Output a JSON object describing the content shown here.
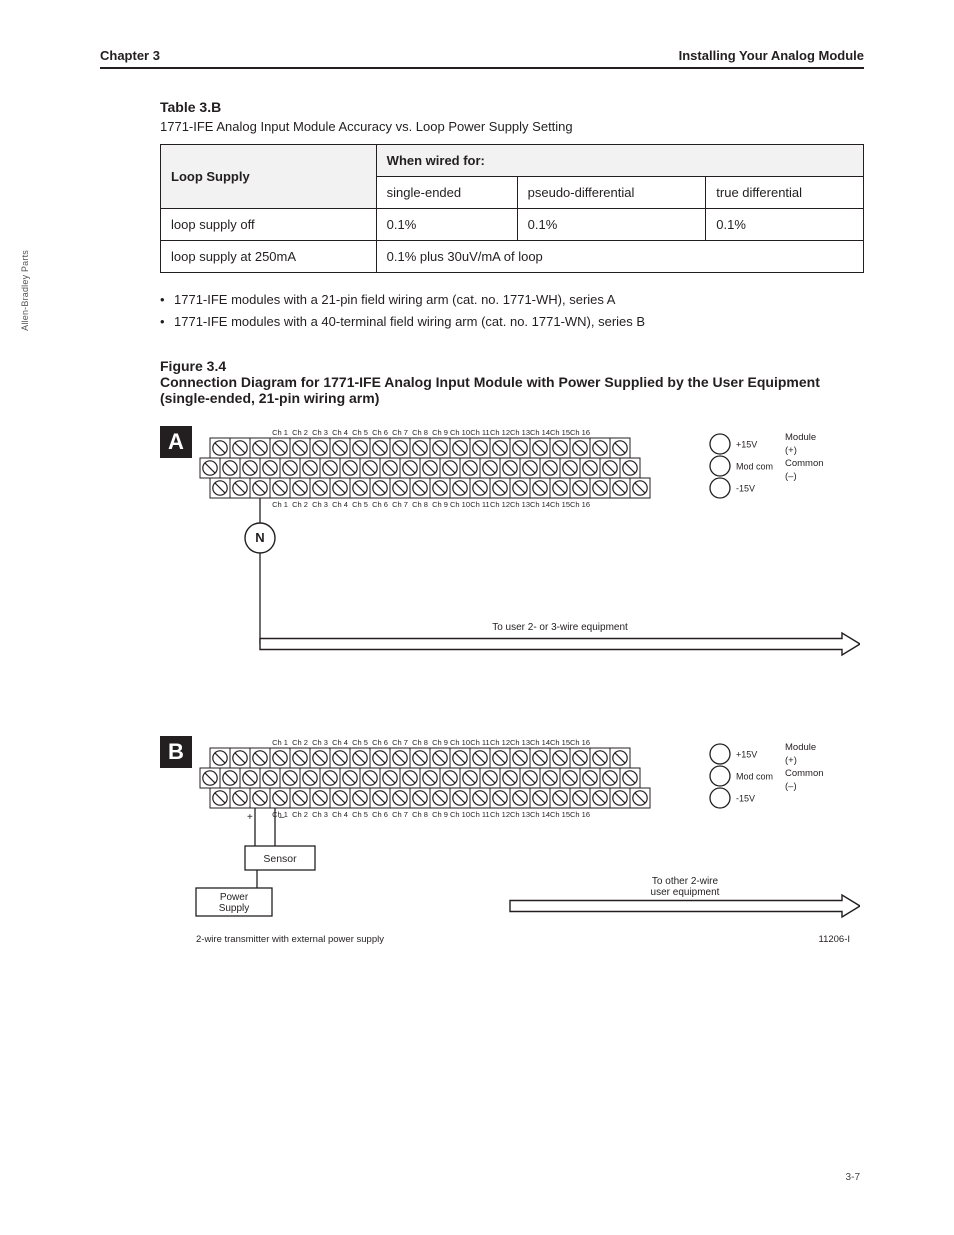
{
  "gutter_text": "Allen-Bradley Parts",
  "chapter": {
    "left": "Chapter 3",
    "right": "Installing Your Analog Module"
  },
  "section_label": "",
  "table": {
    "title": "Table 3.B",
    "subtitle": "1771-IFE Analog Input Module Accuracy vs. Loop Power Supply Setting",
    "header_left": "Loop Supply",
    "header_main": "When wired for:",
    "cols": [
      "single-ended",
      "pseudo-differential",
      "true differential"
    ],
    "rows": [
      [
        "loop supply off",
        "0.1%",
        "0.1%",
        "0.1%"
      ],
      [
        "loop supply at 250mA",
        "0.1% plus 30uV/mA of loop"
      ]
    ],
    "merge_last_row": true
  },
  "bullets": [
    "1771-IFE modules with a 21-pin field wiring arm (cat. no. 1771-WH), series A",
    "1771-IFE modules with a 40-terminal field wiring arm (cat. no. 1771-WN), series B"
  ],
  "figure_caption": "Figure 3.4\nConnection Diagram for 1771-IFE Analog Input Module with Power Supplied by the User Equipment (single-ended, 21-pin wiring arm)",
  "diagram": {
    "channels_top": [
      "Ch 1",
      "Ch 2",
      "Ch 3",
      "Ch 4",
      "Ch 5",
      "Ch 6",
      "Ch 7",
      "Ch 8",
      "Ch 9",
      "Ch 10",
      "Ch 11",
      "Ch 12",
      "Ch 13",
      "Ch 14",
      "Ch 15",
      "Ch 16"
    ],
    "channels_bottom": [
      "Ch 1",
      "Ch 2",
      "Ch 3",
      "Ch 4",
      "Ch 5",
      "Ch 6",
      "Ch 7",
      "Ch 8",
      "Ch 9",
      "Ch 10",
      "Ch 11",
      "Ch 12",
      "Ch 13",
      "Ch 14",
      "Ch 15",
      "Ch 16"
    ],
    "screw_cols": 21,
    "screw_cols_row3": 22,
    "blockA": {
      "badge": "A",
      "n_label": "N",
      "right_label": "Module\n(+)\nCommon\n(–)",
      "supply_labels": [
        "+15V",
        "Mod com",
        "-15V"
      ],
      "arrow_text": "To user 2- or 3-wire equipment"
    },
    "blockB": {
      "badge": "B",
      "box_sensor": "Sensor",
      "box_power": "Power\nSupply",
      "plus": "+",
      "minus": "–",
      "supply_labels": [
        "+15V",
        "Mod com",
        "-15V"
      ],
      "right_label": "Module\n(+)\nCommon\n(–)",
      "arrow_text": "To other 2-wire\nuser equipment",
      "footnote_left": "2-wire transmitter with external power supply",
      "footnote_code": "11206-I"
    }
  },
  "page_number": "3-7",
  "colors": {
    "stroke": "#231f20",
    "bg": "#ffffff",
    "header_bg": "#f2f2f2",
    "badge_bg": "#231f20",
    "badge_fg": "#ffffff"
  }
}
